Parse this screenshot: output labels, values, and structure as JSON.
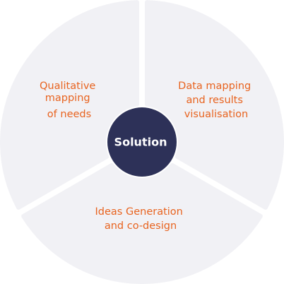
{
  "colors": {
    "segment_fill": "#f1f1f5",
    "label_color": "#e8631f",
    "center_fill": "#2d3158",
    "center_text": "#ffffff"
  },
  "center": {
    "label": "Solution"
  },
  "segments": [
    {
      "id": "left",
      "lines": [
        "Qualitative",
        "mapping",
        "of needs"
      ]
    },
    {
      "id": "right",
      "lines": [
        "Data mapping",
        "and results",
        "visualisation"
      ]
    },
    {
      "id": "bottom",
      "lines": [
        "Ideas Generation",
        "and co-design"
      ]
    }
  ]
}
